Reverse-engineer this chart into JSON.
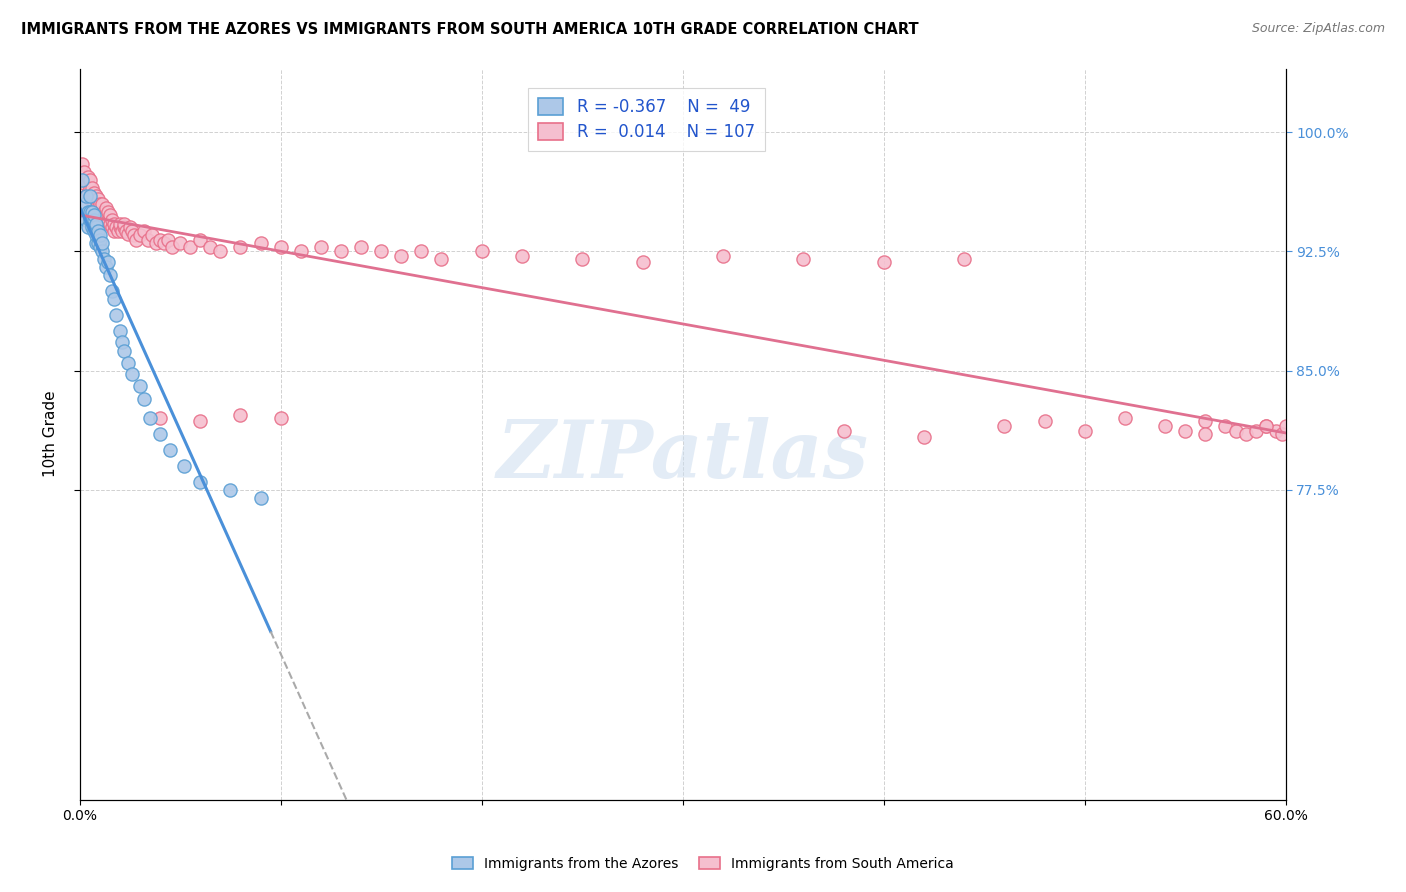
{
  "title": "IMMIGRANTS FROM THE AZORES VS IMMIGRANTS FROM SOUTH AMERICA 10TH GRADE CORRELATION CHART",
  "source": "Source: ZipAtlas.com",
  "ylabel": "10th Grade",
  "r_azores": -0.367,
  "n_azores": 49,
  "r_south_america": 0.014,
  "n_south_america": 107,
  "color_azores_fill": "#adc8e8",
  "color_azores_edge": "#5a9fd4",
  "color_south_america_fill": "#f5bfcf",
  "color_south_america_edge": "#e8708a",
  "color_azores_line": "#4a90d9",
  "color_south_america_line": "#e07090",
  "color_dash": "#aaaaaa",
  "legend_label_azores": "Immigrants from the Azores",
  "legend_label_south_america": "Immigrants from South America",
  "watermark": "ZIPatlas",
  "xmin": 0.0,
  "xmax": 0.6,
  "ymin": 0.58,
  "ymax": 1.04,
  "yticks": [
    0.775,
    0.85,
    0.925,
    1.0
  ],
  "ytick_labels": [
    "77.5%",
    "85.0%",
    "92.5%",
    "100.0%"
  ],
  "xticks": [
    0.0,
    0.1,
    0.2,
    0.3,
    0.4,
    0.5,
    0.6
  ],
  "xtick_labels": [
    "0.0%",
    "",
    "",
    "",
    "",
    "",
    "60.0%"
  ],
  "azores_x": [
    0.001,
    0.002,
    0.003,
    0.003,
    0.004,
    0.004,
    0.005,
    0.005,
    0.005,
    0.006,
    0.006,
    0.006,
    0.007,
    0.007,
    0.007,
    0.007,
    0.008,
    0.008,
    0.008,
    0.008,
    0.009,
    0.009,
    0.009,
    0.01,
    0.01,
    0.01,
    0.011,
    0.011,
    0.012,
    0.013,
    0.014,
    0.015,
    0.016,
    0.017,
    0.018,
    0.02,
    0.021,
    0.022,
    0.024,
    0.026,
    0.03,
    0.032,
    0.035,
    0.04,
    0.045,
    0.052,
    0.06,
    0.075,
    0.09
  ],
  "azores_y": [
    0.97,
    0.955,
    0.945,
    0.96,
    0.94,
    0.95,
    0.945,
    0.95,
    0.96,
    0.94,
    0.945,
    0.95,
    0.938,
    0.94,
    0.945,
    0.948,
    0.93,
    0.935,
    0.94,
    0.942,
    0.93,
    0.935,
    0.938,
    0.928,
    0.932,
    0.935,
    0.925,
    0.93,
    0.92,
    0.915,
    0.918,
    0.91,
    0.9,
    0.895,
    0.885,
    0.875,
    0.868,
    0.862,
    0.855,
    0.848,
    0.84,
    0.832,
    0.82,
    0.81,
    0.8,
    0.79,
    0.78,
    0.775,
    0.77
  ],
  "south_america_x": [
    0.001,
    0.002,
    0.002,
    0.003,
    0.003,
    0.004,
    0.004,
    0.005,
    0.005,
    0.005,
    0.006,
    0.006,
    0.007,
    0.007,
    0.007,
    0.008,
    0.008,
    0.008,
    0.009,
    0.009,
    0.009,
    0.01,
    0.01,
    0.01,
    0.011,
    0.011,
    0.012,
    0.012,
    0.013,
    0.013,
    0.014,
    0.014,
    0.015,
    0.015,
    0.016,
    0.016,
    0.017,
    0.017,
    0.018,
    0.019,
    0.02,
    0.02,
    0.021,
    0.022,
    0.022,
    0.023,
    0.024,
    0.025,
    0.026,
    0.027,
    0.028,
    0.03,
    0.032,
    0.034,
    0.036,
    0.038,
    0.04,
    0.042,
    0.044,
    0.046,
    0.05,
    0.055,
    0.06,
    0.065,
    0.07,
    0.08,
    0.09,
    0.1,
    0.11,
    0.12,
    0.13,
    0.14,
    0.15,
    0.16,
    0.17,
    0.18,
    0.2,
    0.22,
    0.25,
    0.28,
    0.32,
    0.36,
    0.4,
    0.44,
    0.48,
    0.52,
    0.56,
    0.59,
    0.595,
    0.598,
    0.6,
    0.38,
    0.42,
    0.46,
    0.5,
    0.54,
    0.55,
    0.56,
    0.57,
    0.575,
    0.58,
    0.585,
    0.59,
    0.04,
    0.06,
    0.08,
    0.1
  ],
  "south_america_y": [
    0.98,
    0.975,
    0.968,
    0.97,
    0.96,
    0.972,
    0.962,
    0.965,
    0.958,
    0.97,
    0.958,
    0.965,
    0.958,
    0.955,
    0.962,
    0.952,
    0.958,
    0.96,
    0.95,
    0.955,
    0.958,
    0.948,
    0.952,
    0.955,
    0.95,
    0.955,
    0.945,
    0.95,
    0.948,
    0.952,
    0.945,
    0.95,
    0.942,
    0.948,
    0.94,
    0.945,
    0.938,
    0.942,
    0.94,
    0.938,
    0.94,
    0.942,
    0.938,
    0.94,
    0.942,
    0.938,
    0.936,
    0.94,
    0.938,
    0.935,
    0.932,
    0.935,
    0.938,
    0.932,
    0.935,
    0.93,
    0.932,
    0.93,
    0.932,
    0.928,
    0.93,
    0.928,
    0.932,
    0.928,
    0.925,
    0.928,
    0.93,
    0.928,
    0.925,
    0.928,
    0.925,
    0.928,
    0.925,
    0.922,
    0.925,
    0.92,
    0.925,
    0.922,
    0.92,
    0.918,
    0.922,
    0.92,
    0.918,
    0.92,
    0.818,
    0.82,
    0.818,
    0.815,
    0.812,
    0.81,
    0.815,
    0.812,
    0.808,
    0.815,
    0.812,
    0.815,
    0.812,
    0.81,
    0.815,
    0.812,
    0.81,
    0.812,
    0.815,
    0.82,
    0.818,
    0.822,
    0.82
  ]
}
